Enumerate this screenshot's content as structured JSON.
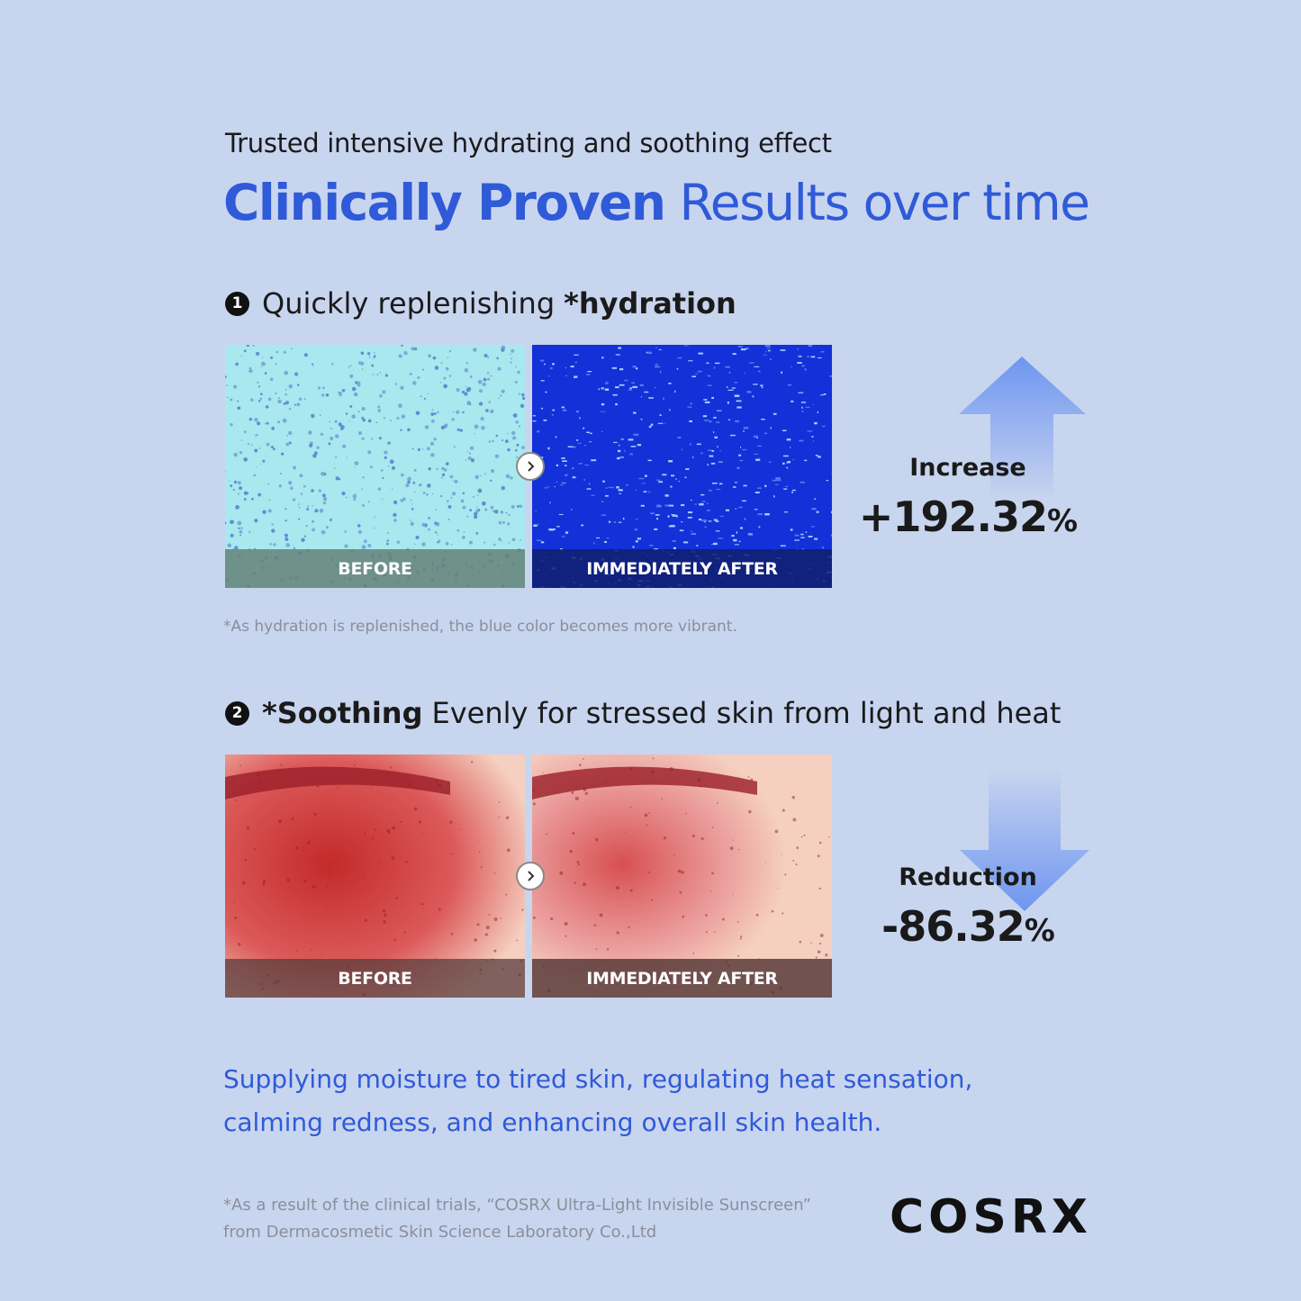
{
  "header": {
    "subtitle": "Trusted intensive hydrating and soothing effect",
    "title_bold": "Clinically Proven",
    "title_rest": "Results over time"
  },
  "sections": [
    {
      "marker": "1",
      "heading_parts": [
        {
          "text": "Quickly replenishing",
          "bold": false
        },
        {
          "text": "*hydration",
          "bold": true
        }
      ],
      "before": "BEFORE",
      "after": "IMMEDIATELY AFTER",
      "stat_label": "Increase",
      "stat_value": "+192.32",
      "stat_unit": "%",
      "note": "*As hydration is replenished, the blue color becomes more vibrant."
    },
    {
      "marker": "2",
      "heading_parts": [
        {
          "text": "*Soothing",
          "bold": true
        },
        {
          "text": "Evenly for stressed skin from light and heat",
          "bold": false
        }
      ],
      "before": "BEFORE",
      "after": "IMMEDIATELY AFTER",
      "stat_label": "Reduction",
      "stat_value": "-86.32",
      "stat_unit": "%"
    }
  ],
  "tagline": [
    "Supplying moisture to tired skin, regulating heat sensation,",
    "calming redness, and enhancing overall skin health."
  ],
  "footnote": [
    "*As a result of the clinical trials, “COSRX Ultra-Light Invisible Sunscreen”",
    "from Dermacosmetic Skin Science Laboratory Co.,Ltd"
  ],
  "logo": "COSRX"
}
